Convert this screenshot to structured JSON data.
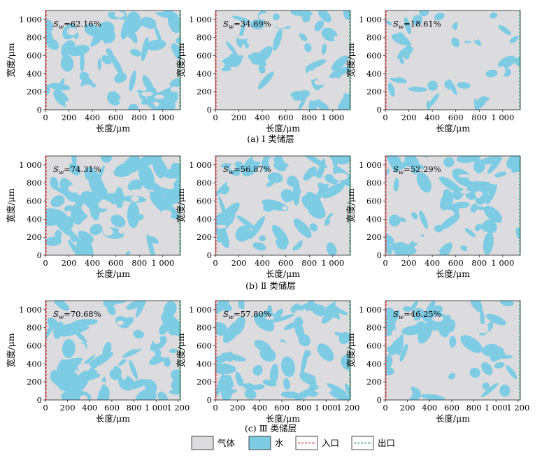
{
  "figure": {
    "width_label": "宽度/μm",
    "length_label": "长度/μm",
    "colors": {
      "gas": "#dcdcde",
      "water": "#7ecbe4",
      "inlet": "#e23a3a",
      "outlet": "#2a9d6c"
    },
    "legend": [
      {
        "key": "gas",
        "label": "气体",
        "icon": "gas-swatch"
      },
      {
        "key": "water",
        "label": "水",
        "icon": "water-swatch"
      },
      {
        "key": "inlet",
        "label": "入口",
        "icon": "inlet-dashed-line"
      },
      {
        "key": "outlet",
        "label": "出口",
        "icon": "outlet-dashed-line"
      }
    ]
  },
  "chart_data": [
    {
      "type": "heatmap",
      "row": 0,
      "col": 0,
      "caption": "(a) Ⅰ 类储层",
      "annotation": "Sw=62.16%",
      "saturation_symbol": "S",
      "saturation_sub": "w",
      "saturation_value": "=62.16%",
      "water_saturation": 62.16,
      "xlim": [
        0,
        1150
      ],
      "ylim": [
        0,
        1100
      ],
      "xticks": [
        0,
        200,
        400,
        600,
        800,
        1000
      ],
      "xtick_labels": [
        "0",
        "200",
        "400",
        "600",
        "800",
        "1 000"
      ],
      "yticks": [
        0,
        200,
        400,
        600,
        800,
        1000
      ],
      "ytick_labels": [
        "0",
        "200",
        "400",
        "600",
        "800",
        "1 000"
      ],
      "xlabel": "长度/μm",
      "ylabel": "宽度/μm"
    },
    {
      "type": "heatmap",
      "row": 0,
      "col": 1,
      "caption": "(a) Ⅰ 类储层",
      "annotation": "Sw=34.69%",
      "saturation_symbol": "S",
      "saturation_sub": "w",
      "saturation_value": "=34.69%",
      "water_saturation": 34.69,
      "xlim": [
        0,
        1150
      ],
      "ylim": [
        0,
        1100
      ],
      "xticks": [
        0,
        200,
        400,
        600,
        800,
        1000
      ],
      "xtick_labels": [
        "0",
        "200",
        "400",
        "600",
        "800",
        "1 000"
      ],
      "yticks": [
        0,
        200,
        400,
        600,
        800,
        1000
      ],
      "ytick_labels": [
        "0",
        "200",
        "400",
        "600",
        "800",
        "1 000"
      ],
      "xlabel": "长度/μm",
      "ylabel": "宽度/μm"
    },
    {
      "type": "heatmap",
      "row": 0,
      "col": 2,
      "caption": "(a) Ⅰ 类储层",
      "annotation": "Sw=18.61%",
      "saturation_symbol": "S",
      "saturation_sub": "w",
      "saturation_value": "=18.61%",
      "water_saturation": 18.61,
      "xlim": [
        0,
        1150
      ],
      "ylim": [
        0,
        1100
      ],
      "xticks": [
        0,
        200,
        400,
        600,
        800,
        1000
      ],
      "xtick_labels": [
        "0",
        "200",
        "400",
        "600",
        "800",
        "1 000"
      ],
      "yticks": [
        0,
        200,
        400,
        600,
        800,
        1000
      ],
      "ytick_labels": [
        "0",
        "200",
        "400",
        "600",
        "800",
        "1 000"
      ],
      "xlabel": "长度/μm",
      "ylabel": "宽度/μm"
    },
    {
      "type": "heatmap",
      "row": 1,
      "col": 0,
      "caption": "(b) Ⅱ 类储层",
      "annotation": "Sw=74.31%",
      "saturation_symbol": "S",
      "saturation_sub": "w",
      "saturation_value": "=74.31%",
      "water_saturation": 74.31,
      "xlim": [
        0,
        1150
      ],
      "ylim": [
        0,
        1100
      ],
      "xticks": [
        0,
        200,
        400,
        600,
        800,
        1000
      ],
      "xtick_labels": [
        "0",
        "200",
        "400",
        "600",
        "800",
        "1 000"
      ],
      "yticks": [
        0,
        200,
        400,
        600,
        800,
        1000
      ],
      "ytick_labels": [
        "0",
        "200",
        "400",
        "600",
        "800",
        "1 000"
      ],
      "xlabel": "长度/μm",
      "ylabel": "宽度/μm"
    },
    {
      "type": "heatmap",
      "row": 1,
      "col": 1,
      "caption": "(b) Ⅱ 类储层",
      "annotation": "Sw=56.87%",
      "saturation_symbol": "S",
      "saturation_sub": "w",
      "saturation_value": "=56.87%",
      "water_saturation": 56.87,
      "xlim": [
        0,
        1150
      ],
      "ylim": [
        0,
        1100
      ],
      "xticks": [
        0,
        200,
        400,
        600,
        800,
        1000
      ],
      "xtick_labels": [
        "0",
        "200",
        "400",
        "600",
        "800",
        "1 000"
      ],
      "yticks": [
        0,
        200,
        400,
        600,
        800,
        1000
      ],
      "ytick_labels": [
        "0",
        "200",
        "400",
        "600",
        "800",
        "1 000"
      ],
      "xlabel": "长度/μm",
      "ylabel": "宽度/μm"
    },
    {
      "type": "heatmap",
      "row": 1,
      "col": 2,
      "caption": "(b) Ⅱ 类储层",
      "annotation": "Sw=52.29%",
      "saturation_symbol": "S",
      "saturation_sub": "w",
      "saturation_value": "=52.29%",
      "water_saturation": 52.29,
      "xlim": [
        0,
        1150
      ],
      "ylim": [
        0,
        1100
      ],
      "xticks": [
        0,
        200,
        400,
        600,
        800,
        1000
      ],
      "xtick_labels": [
        "0",
        "200",
        "400",
        "600",
        "800",
        "1 000"
      ],
      "yticks": [
        0,
        200,
        400,
        600,
        800,
        1000
      ],
      "ytick_labels": [
        "0",
        "200",
        "400",
        "600",
        "800",
        "1 000"
      ],
      "xlabel": "长度/μm",
      "ylabel": "宽度/μm"
    },
    {
      "type": "heatmap",
      "row": 2,
      "col": 0,
      "caption": "(c) Ⅲ 类储层",
      "annotation": "Sw=70.68%",
      "saturation_symbol": "S",
      "saturation_sub": "w",
      "saturation_value": "=70.68%",
      "water_saturation": 70.68,
      "xlim": [
        0,
        1220
      ],
      "ylim": [
        0,
        1100
      ],
      "xticks": [
        0,
        200,
        400,
        600,
        800,
        1000,
        1200
      ],
      "xtick_labels": [
        "0",
        "200",
        "400",
        "600",
        "800",
        "1 000",
        "1 200"
      ],
      "yticks": [
        0,
        200,
        400,
        600,
        800,
        1000
      ],
      "ytick_labels": [
        "0",
        "200",
        "400",
        "600",
        "800",
        "1 000"
      ],
      "xlabel": "长度/μm",
      "ylabel": "宽度/μm"
    },
    {
      "type": "heatmap",
      "row": 2,
      "col": 1,
      "caption": "(c) Ⅲ 类储层",
      "annotation": "Sw=57.80%",
      "saturation_symbol": "S",
      "saturation_sub": "w",
      "saturation_value": "=57.80%",
      "water_saturation": 57.8,
      "xlim": [
        0,
        1220
      ],
      "ylim": [
        0,
        1100
      ],
      "xticks": [
        0,
        200,
        400,
        600,
        800,
        1000,
        1200
      ],
      "xtick_labels": [
        "0",
        "200",
        "400",
        "600",
        "800",
        "1 000",
        "1 200"
      ],
      "yticks": [
        0,
        200,
        400,
        600,
        800,
        1000
      ],
      "ytick_labels": [
        "0",
        "200",
        "400",
        "600",
        "800",
        "1 000"
      ],
      "xlabel": "长度/μm",
      "ylabel": "宽度/μm"
    },
    {
      "type": "heatmap",
      "row": 2,
      "col": 2,
      "caption": "(c) Ⅲ 类储层",
      "annotation": "Sw=46.25%",
      "saturation_symbol": "S",
      "saturation_sub": "w",
      "saturation_value": "=46.25%",
      "water_saturation": 46.25,
      "xlim": [
        0,
        1220
      ],
      "ylim": [
        0,
        1100
      ],
      "xticks": [
        0,
        200,
        400,
        600,
        800,
        1000,
        1200
      ],
      "xtick_labels": [
        "0",
        "200",
        "400",
        "600",
        "800",
        "1 000",
        "1 200"
      ],
      "yticks": [
        0,
        200,
        400,
        600,
        800,
        1000
      ],
      "ytick_labels": [
        "0",
        "200",
        "400",
        "600",
        "800",
        "1 000"
      ],
      "xlabel": "长度/μm",
      "ylabel": "宽度/μm"
    }
  ],
  "captions": [
    "(a) Ⅰ 类储层",
    "(b) Ⅱ 类储层",
    "(c) Ⅲ 类储层"
  ]
}
